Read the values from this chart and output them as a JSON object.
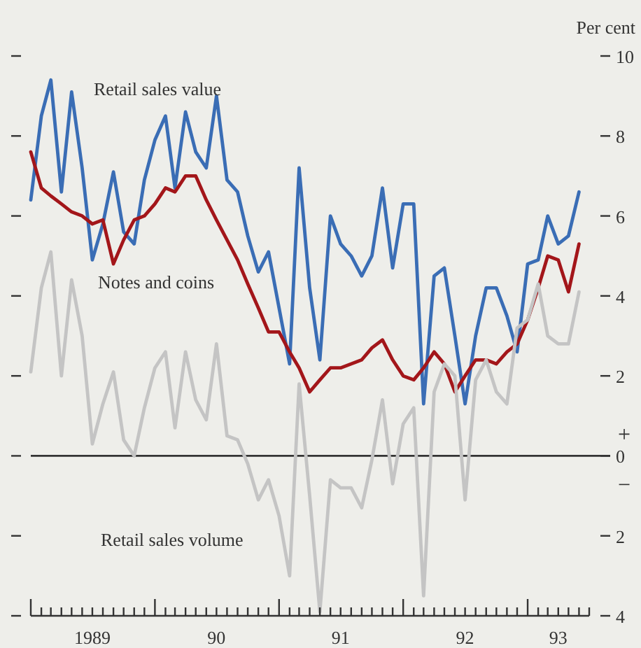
{
  "chart_data": {
    "type": "line",
    "ylabel": "Per cent",
    "x": [
      "1989-01",
      "1989-02",
      "1989-03",
      "1989-04",
      "1989-05",
      "1989-06",
      "1989-07",
      "1989-08",
      "1989-09",
      "1989-10",
      "1989-11",
      "1989-12",
      "1990-01",
      "1990-02",
      "1990-03",
      "1990-04",
      "1990-05",
      "1990-06",
      "1990-07",
      "1990-08",
      "1990-09",
      "1990-10",
      "1990-11",
      "1990-12",
      "1991-01",
      "1991-02",
      "1991-03",
      "1991-04",
      "1991-05",
      "1991-06",
      "1991-07",
      "1991-08",
      "1991-09",
      "1991-10",
      "1991-11",
      "1991-12",
      "1992-01",
      "1992-02",
      "1992-03",
      "1992-04",
      "1992-05",
      "1992-06",
      "1992-07",
      "1992-08",
      "1992-09",
      "1992-10",
      "1992-11",
      "1992-12",
      "1993-01",
      "1993-02",
      "1993-03",
      "1993-04",
      "1993-05",
      "1993-06"
    ],
    "series": [
      {
        "name": "Retail sales value",
        "color": "#3a6db5",
        "values": [
          6.4,
          8.5,
          9.4,
          6.6,
          9.1,
          7.2,
          4.9,
          5.8,
          7.1,
          5.6,
          5.3,
          6.9,
          7.9,
          8.5,
          6.7,
          8.6,
          7.6,
          7.2,
          9.0,
          6.9,
          6.6,
          5.5,
          4.6,
          5.1,
          3.7,
          2.3,
          7.2,
          4.2,
          2.4,
          6.0,
          5.3,
          5.0,
          4.5,
          5.0,
          6.7,
          4.7,
          6.3,
          6.3,
          1.3,
          4.5,
          4.7,
          3.0,
          1.3,
          3.0,
          4.2,
          4.2,
          3.5,
          2.6,
          4.8,
          4.9,
          6.0,
          5.3,
          5.5,
          6.6
        ]
      },
      {
        "name": "Notes and coins",
        "color": "#a3161a",
        "values": [
          7.6,
          6.7,
          6.5,
          6.3,
          6.1,
          6.0,
          5.8,
          5.9,
          4.8,
          5.4,
          5.9,
          6.0,
          6.3,
          6.7,
          6.6,
          7.0,
          7.0,
          6.4,
          5.9,
          5.4,
          4.9,
          4.3,
          3.7,
          3.1,
          3.1,
          2.6,
          2.2,
          1.6,
          1.9,
          2.2,
          2.2,
          2.3,
          2.4,
          2.7,
          2.9,
          2.4,
          2.0,
          1.9,
          2.2,
          2.6,
          2.3,
          1.6,
          2.0,
          2.4,
          2.4,
          2.3,
          2.6,
          2.8,
          3.4,
          4.2,
          5.0,
          4.9,
          4.1,
          5.3
        ]
      },
      {
        "name": "Retail sales volume",
        "color": "#c4c4c4",
        "values": [
          2.1,
          4.2,
          5.1,
          2.0,
          4.4,
          3.0,
          0.3,
          1.3,
          2.1,
          0.4,
          0.0,
          1.2,
          2.2,
          2.6,
          0.7,
          2.6,
          1.4,
          0.9,
          2.8,
          0.5,
          0.4,
          -0.2,
          -1.1,
          -0.6,
          -1.5,
          -3.0,
          1.8,
          -1.0,
          -3.9,
          -0.6,
          -0.8,
          -0.8,
          -1.3,
          -0.1,
          1.4,
          -0.7,
          0.8,
          1.2,
          -3.5,
          1.6,
          2.3,
          2.0,
          -1.1,
          1.9,
          2.4,
          1.6,
          1.3,
          3.2,
          3.4,
          4.3,
          3.0,
          2.8,
          2.8,
          4.1
        ]
      }
    ],
    "xlim": [
      "1989-01",
      "1993-07"
    ],
    "xticks": [
      {
        "value": "1989-01",
        "label": null
      },
      {
        "value": "1989-02",
        "label": null
      },
      {
        "value": "1989-03",
        "label": null
      },
      {
        "value": "1989-04",
        "label": null
      },
      {
        "value": "1989-05",
        "label": null
      },
      {
        "value": "1989-06",
        "label": null
      },
      {
        "value": "1989-07",
        "label": "1989"
      },
      {
        "value": "1989-08",
        "label": null
      },
      {
        "value": "1989-09",
        "label": null
      },
      {
        "value": "1989-10",
        "label": null
      },
      {
        "value": "1989-11",
        "label": null
      },
      {
        "value": "1989-12",
        "label": null
      },
      {
        "value": "1990-01",
        "label": null
      },
      {
        "value": "1990-02",
        "label": null
      },
      {
        "value": "1990-03",
        "label": null
      },
      {
        "value": "1990-04",
        "label": null
      },
      {
        "value": "1990-05",
        "label": null
      },
      {
        "value": "1990-06",
        "label": null
      },
      {
        "value": "1990-07",
        "label": "90"
      },
      {
        "value": "1990-08",
        "label": null
      },
      {
        "value": "1990-09",
        "label": null
      },
      {
        "value": "1990-10",
        "label": null
      },
      {
        "value": "1990-11",
        "label": null
      },
      {
        "value": "1990-12",
        "label": null
      },
      {
        "value": "1991-01",
        "label": null
      },
      {
        "value": "1991-02",
        "label": null
      },
      {
        "value": "1991-03",
        "label": null
      },
      {
        "value": "1991-04",
        "label": null
      },
      {
        "value": "1991-05",
        "label": null
      },
      {
        "value": "1991-06",
        "label": null
      },
      {
        "value": "1991-07",
        "label": "91"
      },
      {
        "value": "1991-08",
        "label": null
      },
      {
        "value": "1991-09",
        "label": null
      },
      {
        "value": "1991-10",
        "label": null
      },
      {
        "value": "1991-11",
        "label": null
      },
      {
        "value": "1991-12",
        "label": null
      },
      {
        "value": "1992-01",
        "label": null
      },
      {
        "value": "1992-02",
        "label": null
      },
      {
        "value": "1992-03",
        "label": null
      },
      {
        "value": "1992-04",
        "label": null
      },
      {
        "value": "1992-05",
        "label": null
      },
      {
        "value": "1992-06",
        "label": null
      },
      {
        "value": "1992-07",
        "label": "92"
      },
      {
        "value": "1992-08",
        "label": null
      },
      {
        "value": "1992-09",
        "label": null
      },
      {
        "value": "1992-10",
        "label": null
      },
      {
        "value": "1992-11",
        "label": null
      },
      {
        "value": "1992-12",
        "label": null
      },
      {
        "value": "1993-01",
        "label": null
      },
      {
        "value": "1993-02",
        "label": null
      },
      {
        "value": "1993-03",
        "label": null
      },
      {
        "value": "1993-04",
        "label": "93"
      },
      {
        "value": "1993-05",
        "label": null
      },
      {
        "value": "1993-06",
        "label": null
      },
      {
        "value": "1993-07",
        "label": null
      }
    ],
    "ylim": [
      -4,
      10
    ],
    "yticks": [
      {
        "value": -4,
        "label": "4"
      },
      {
        "value": -2,
        "label": "2"
      },
      0,
      2,
      4,
      6,
      8,
      10
    ],
    "ref_lines": [
      {
        "axis": "y",
        "value": 0,
        "color": "#333333"
      }
    ],
    "annotations": [
      "+",
      "−"
    ],
    "grid": false,
    "line_style": "solid"
  }
}
